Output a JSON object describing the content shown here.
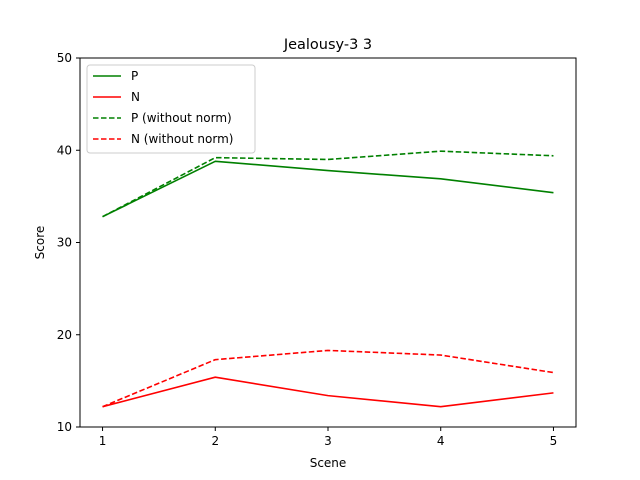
{
  "chart_data": {
    "type": "line",
    "title": "Jealousy-3 3",
    "xlabel": "Scene",
    "ylabel": "Score",
    "x": [
      1,
      2,
      3,
      4,
      5
    ],
    "xlim": [
      0.8,
      5.2
    ],
    "ylim": [
      10,
      50
    ],
    "xticks": [
      "1",
      "2",
      "3",
      "4",
      "5"
    ],
    "yticks": [
      "10",
      "20",
      "30",
      "40",
      "50"
    ],
    "grid": false,
    "legend_position": "top-left",
    "series": [
      {
        "name": "P",
        "color": "#008000",
        "dash": "solid",
        "values": [
          32.8,
          38.8,
          37.8,
          36.9,
          35.4
        ]
      },
      {
        "name": "N",
        "color": "#ff0000",
        "dash": "solid",
        "values": [
          12.2,
          15.4,
          13.4,
          12.2,
          13.7
        ]
      },
      {
        "name": "P (without norm)",
        "color": "#008000",
        "dash": "dashed",
        "values": [
          32.8,
          39.2,
          39.0,
          39.9,
          39.4
        ]
      },
      {
        "name": "N (without norm)",
        "color": "#ff0000",
        "dash": "dashed",
        "values": [
          12.2,
          17.3,
          18.3,
          17.8,
          15.9
        ]
      }
    ]
  }
}
